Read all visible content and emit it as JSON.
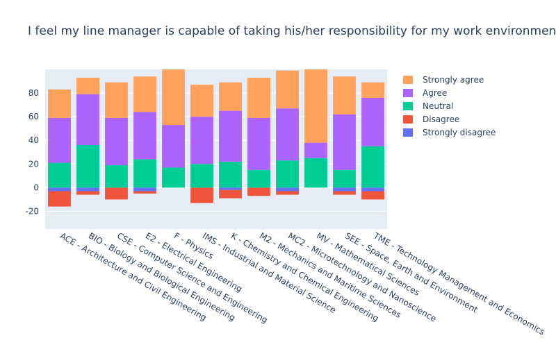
{
  "chart_data": {
    "type": "bar",
    "barmode": "relative",
    "title": "I feel my line manager is capable of taking his/her responsibility for my work environment",
    "categories": [
      "ACE - Architecture and Civil Engineering",
      "BIO - Biology and Biological Engineering",
      "CSE - Computer Science and Engineering",
      "E2 - Electrical Engineering",
      "F - Physics",
      "IMS - Industrial and Material Science",
      "K - Chemistry and Chemical Engineering",
      "M2 - Mechanics and Maritime Sciences",
      "MC2 - Microtechnology and Nanoscience",
      "MV - Mathematical Sciences",
      "SEE - Space, Earth and Environment",
      "TME - Technology Management and Economics"
    ],
    "series": [
      {
        "name": "Strongly disagree",
        "color": "#636efa",
        "values": [
          -3,
          -3,
          0,
          -3,
          0,
          0,
          -2,
          0,
          -3,
          0,
          -3,
          -3
        ]
      },
      {
        "name": "Disagree",
        "color": "#ef553b",
        "values": [
          -13,
          -3,
          -10,
          -2,
          0,
          -13,
          -7,
          -7,
          -3,
          0,
          -3,
          -7
        ]
      },
      {
        "name": "Neutral",
        "color": "#00cc96",
        "values": [
          21,
          36,
          19,
          24,
          17,
          20,
          22,
          15,
          23,
          25,
          15,
          35
        ]
      },
      {
        "name": "Agree",
        "color": "#ab63fa",
        "values": [
          38,
          43,
          40,
          40,
          36,
          40,
          43,
          44,
          44,
          13,
          47,
          41
        ]
      },
      {
        "name": "Strongly agree",
        "color": "#ffa15a",
        "values": [
          24,
          14,
          30,
          30,
          47,
          27,
          24,
          34,
          32,
          62,
          32,
          13
        ]
      }
    ],
    "ylim": [
      -35,
      100
    ],
    "yticks": [
      -20,
      0,
      20,
      40,
      60,
      80
    ],
    "xlabel": "",
    "ylabel": "",
    "grid": true,
    "legend_position": "right"
  }
}
